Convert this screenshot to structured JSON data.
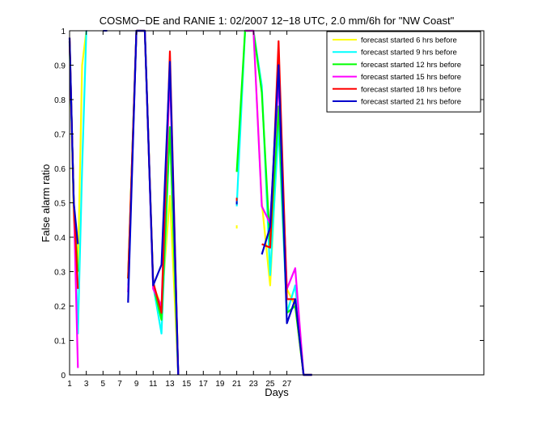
{
  "chart_data": {
    "type": "line",
    "title": "COSMO−DE and RANIE 1: 02/2007 12−18 UTC, 2.0 mm/6h for \"NW Coast\"",
    "xlabel": "Days",
    "ylabel": "False alarm ratio",
    "xlim": [
      1,
      29
    ],
    "ylim": [
      0,
      1
    ],
    "x_ticks": [
      1,
      3,
      5,
      7,
      9,
      11,
      13,
      15,
      17,
      19,
      21,
      23,
      25,
      27
    ],
    "y_ticks": [
      0,
      0.1,
      0.2,
      0.3,
      0.4,
      0.5,
      0.6,
      0.7,
      0.8,
      0.9,
      1
    ],
    "y_tick_labels": [
      "0",
      "0.1",
      "0.2",
      "0.3",
      "0.4",
      "0.5",
      "0.6",
      "0.7",
      "0.8",
      "0.9",
      "1"
    ],
    "x_tick_labels": [
      "1",
      "3",
      "5",
      "7",
      "9",
      "11",
      "13",
      "15",
      "17",
      "19",
      "21",
      "23",
      "25",
      "27"
    ],
    "legend_position": "top-right",
    "grid": false,
    "series": [
      {
        "name": "forecast started 6 hrs before",
        "color": "#ffff00",
        "points": [
          [
            1,
            0.97
          ],
          [
            1.5,
            0.45
          ],
          [
            2,
            0.3
          ],
          [
            2.5,
            0.9
          ],
          [
            3,
            1.0
          ],
          null,
          [
            8,
            0.28
          ],
          [
            9,
            1.0
          ],
          [
            10,
            1.0
          ],
          [
            11,
            0.26
          ],
          [
            12,
            0.2
          ],
          [
            13,
            0.52
          ],
          [
            14,
            0.0
          ],
          null,
          [
            21,
            0.43
          ],
          null,
          [
            22,
            1.0
          ],
          [
            23,
            1.0
          ],
          [
            24,
            0.5
          ],
          [
            25,
            0.26
          ],
          [
            26,
            0.75
          ],
          [
            27,
            0.25
          ],
          [
            28,
            0.2
          ],
          [
            29,
            0.0
          ],
          [
            30,
            0.0
          ]
        ]
      },
      {
        "name": "forecast started 9 hrs before",
        "color": "#00ffff",
        "points": [
          [
            1,
            0.96
          ],
          [
            1.5,
            0.5
          ],
          [
            2,
            0.12
          ],
          [
            2.5,
            0.6
          ],
          [
            3,
            1.0
          ],
          null,
          [
            8,
            0.26
          ],
          [
            9,
            1.0
          ],
          [
            10,
            1.0
          ],
          [
            11,
            0.26
          ],
          [
            12,
            0.12
          ],
          [
            13,
            0.72
          ],
          [
            14,
            0.0
          ],
          null,
          [
            21,
            0.49
          ],
          [
            22,
            1.0
          ],
          [
            23,
            1.0
          ],
          [
            24,
            0.84
          ],
          [
            25,
            0.29
          ],
          [
            26,
            0.72
          ],
          [
            27,
            0.18
          ],
          [
            28,
            0.26
          ],
          [
            29,
            0.0
          ],
          [
            30,
            0.0
          ]
        ]
      },
      {
        "name": "forecast started 12 hrs before",
        "color": "#00ff00",
        "points": [
          [
            1,
            0.97
          ],
          [
            1.5,
            0.5
          ],
          [
            2,
            0.3
          ],
          null,
          [
            8,
            0.28
          ],
          [
            9,
            1.0
          ],
          [
            10,
            1.0
          ],
          [
            11,
            0.26
          ],
          [
            12,
            0.16
          ],
          [
            13,
            0.72
          ],
          [
            14,
            0.0
          ],
          null,
          [
            21,
            0.59
          ],
          [
            22,
            1.0
          ],
          [
            23,
            1.0
          ],
          [
            24,
            0.82
          ],
          [
            25,
            0.37
          ],
          [
            26,
            0.78
          ],
          [
            27,
            0.18
          ],
          [
            28,
            0.2
          ],
          [
            29,
            0.0
          ],
          [
            30,
            0.0
          ]
        ]
      },
      {
        "name": "forecast started 15 hrs before",
        "color": "#ff00ff",
        "points": [
          [
            1,
            0.97
          ],
          [
            1.5,
            0.5
          ],
          [
            2,
            0.02
          ],
          null,
          [
            8,
            0.24
          ],
          [
            9,
            1.0
          ],
          [
            10,
            1.0
          ],
          [
            11,
            0.25
          ],
          [
            12,
            0.2
          ],
          [
            13,
            0.88
          ],
          [
            14,
            0.0
          ],
          null,
          [
            22,
            1.0
          ],
          [
            23,
            1.0
          ],
          [
            24,
            0.49
          ],
          [
            25,
            0.44
          ],
          [
            26,
            0.86
          ],
          [
            27,
            0.25
          ],
          [
            28,
            0.31
          ],
          [
            29,
            0.0
          ],
          [
            30,
            0.0
          ]
        ]
      },
      {
        "name": "forecast started 18 hrs before",
        "color": "#ff0000",
        "points": [
          [
            1,
            0.98
          ],
          [
            1.5,
            0.5
          ],
          [
            2,
            0.25
          ],
          null,
          [
            8,
            0.28
          ],
          [
            9,
            1.0
          ],
          [
            10,
            1.0
          ],
          [
            11,
            0.27
          ],
          [
            12,
            0.18
          ],
          [
            13,
            0.94
          ],
          [
            14,
            0.0
          ],
          null,
          [
            21,
            0.51
          ],
          null,
          [
            24,
            0.38
          ],
          [
            25,
            0.37
          ],
          [
            26,
            0.97
          ],
          [
            27,
            0.22
          ],
          [
            28,
            0.22
          ],
          [
            29,
            0.0
          ],
          [
            30,
            0.0
          ]
        ]
      },
      {
        "name": "forecast started 21 hrs before",
        "color": "#0000cc",
        "points": [
          [
            1,
            0.98
          ],
          [
            1.5,
            0.5
          ],
          [
            2,
            0.38
          ],
          null,
          [
            8,
            0.21
          ],
          [
            9,
            1.0
          ],
          [
            10,
            1.0
          ],
          [
            11,
            0.26
          ],
          [
            12,
            0.32
          ],
          [
            13,
            0.91
          ],
          [
            14,
            0.0
          ],
          null,
          [
            21,
            0.5
          ],
          null,
          [
            24,
            0.35
          ],
          [
            25,
            0.43
          ],
          [
            26,
            0.9
          ],
          [
            27,
            0.15
          ],
          [
            28,
            0.22
          ],
          [
            29,
            0.0
          ],
          [
            30,
            0.0
          ]
        ]
      }
    ],
    "extra_marks": [
      {
        "color": "#0000cc",
        "points": [
          [
            3,
            1.0
          ],
          [
            3.05,
            1.0
          ]
        ]
      },
      {
        "color": "#0000cc",
        "points": [
          [
            5,
            1.0
          ],
          [
            5.5,
            1.0
          ]
        ]
      }
    ]
  }
}
